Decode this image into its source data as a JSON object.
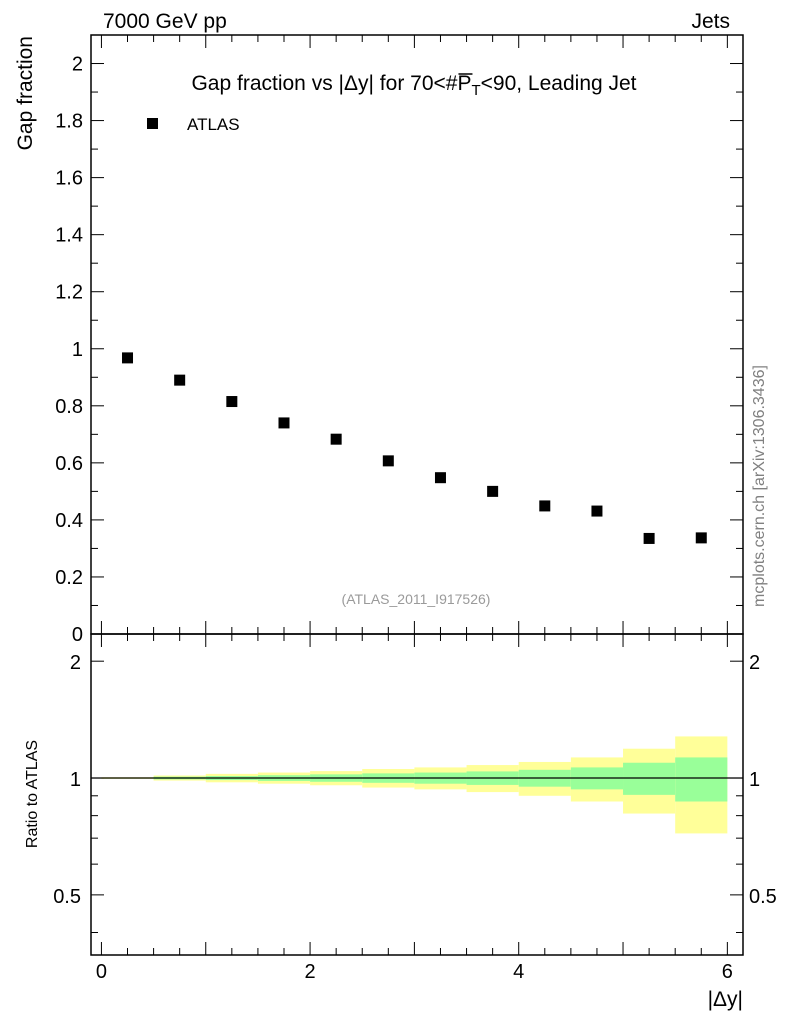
{
  "header": {
    "left": "7000 GeV pp",
    "right": "Jets"
  },
  "side_label": "mcplots.cern.ch [arXiv:1306.3436]",
  "chart_data": [
    {
      "type": "scatter",
      "title_prefix": "Gap fraction vs |Δy| for 70<#",
      "title_p": "P",
      "title_sub": "T",
      "title_suffix": "<90, Leading Jet",
      "ylabel": "Gap fraction",
      "xlim": [
        -0.1,
        6.15
      ],
      "ylim": [
        0,
        2.1
      ],
      "y_ticks": [
        "0",
        "0.2",
        "0.4",
        "0.6",
        "0.8",
        "1",
        "1.2",
        "1.4",
        "1.6",
        "1.8",
        "2"
      ],
      "grid": false,
      "legend_position": "top-left",
      "annotation": "(ATLAS_2011_I917526)",
      "series": [
        {
          "name": "ATLAS",
          "color": "#000000",
          "x": [
            0.25,
            0.75,
            1.25,
            1.75,
            2.25,
            2.75,
            3.25,
            3.75,
            4.25,
            4.75,
            5.25,
            5.75
          ],
          "y": [
            0.968,
            0.89,
            0.815,
            0.74,
            0.683,
            0.607,
            0.548,
            0.5,
            0.449,
            0.431,
            0.335,
            0.337
          ]
        }
      ]
    },
    {
      "type": "area",
      "ylabel": "Ratio to ATLAS",
      "xlabel": "|Δy|",
      "xlim": [
        -0.1,
        6.15
      ],
      "ylim": [
        0.35,
        2.35
      ],
      "x_ticks": [
        "0",
        "2",
        "4",
        "6"
      ],
      "y_ticks": [
        "0.5",
        "1",
        "2"
      ],
      "reference": 1.0,
      "band_colors": {
        "outer": "#ffff99",
        "inner": "#99ff99"
      },
      "bins": [
        {
          "x0": 0.0,
          "x1": 0.5,
          "inner": [
            0.997,
            1.003
          ],
          "outer": [
            0.995,
            1.005
          ]
        },
        {
          "x0": 0.5,
          "x1": 1.0,
          "inner": [
            0.992,
            1.008
          ],
          "outer": [
            0.985,
            1.015
          ]
        },
        {
          "x0": 1.0,
          "x1": 1.5,
          "inner": [
            0.988,
            1.012
          ],
          "outer": [
            0.975,
            1.025
          ]
        },
        {
          "x0": 1.5,
          "x1": 2.0,
          "inner": [
            0.983,
            1.017
          ],
          "outer": [
            0.967,
            1.033
          ]
        },
        {
          "x0": 2.0,
          "x1": 2.5,
          "inner": [
            0.978,
            1.022
          ],
          "outer": [
            0.958,
            1.042
          ]
        },
        {
          "x0": 2.5,
          "x1": 3.0,
          "inner": [
            0.972,
            1.028
          ],
          "outer": [
            0.945,
            1.055
          ]
        },
        {
          "x0": 3.0,
          "x1": 3.5,
          "inner": [
            0.967,
            1.033
          ],
          "outer": [
            0.935,
            1.065
          ]
        },
        {
          "x0": 3.5,
          "x1": 4.0,
          "inner": [
            0.96,
            1.04
          ],
          "outer": [
            0.92,
            1.08
          ]
        },
        {
          "x0": 4.0,
          "x1": 4.5,
          "inner": [
            0.95,
            1.05
          ],
          "outer": [
            0.9,
            1.1
          ]
        },
        {
          "x0": 4.5,
          "x1": 5.0,
          "inner": [
            0.935,
            1.065
          ],
          "outer": [
            0.87,
            1.13
          ]
        },
        {
          "x0": 5.0,
          "x1": 5.5,
          "inner": [
            0.905,
            1.095
          ],
          "outer": [
            0.81,
            1.19
          ]
        },
        {
          "x0": 5.5,
          "x1": 6.0,
          "inner": [
            0.87,
            1.13
          ],
          "outer": [
            0.72,
            1.28
          ]
        }
      ]
    }
  ]
}
